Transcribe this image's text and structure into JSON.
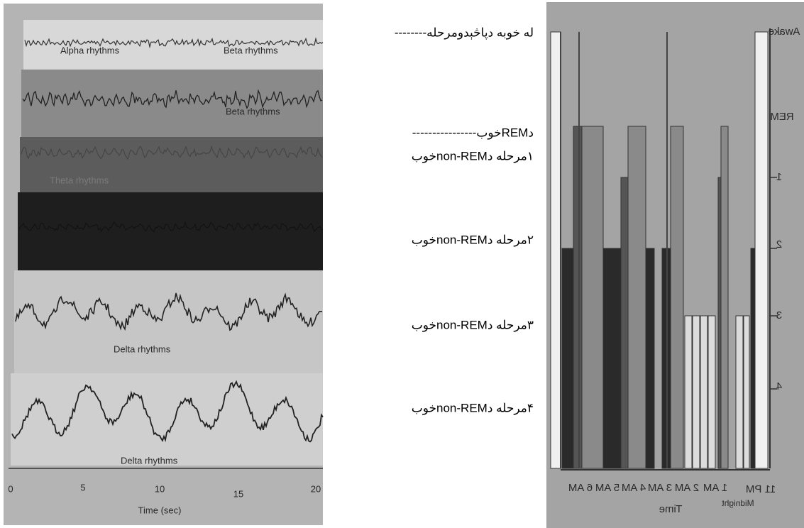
{
  "eeg_panel": {
    "trace_labels": [
      "Alpha rhythms",
      "Beta rhythms",
      "Beta rhythms",
      "Theta rhythms",
      "Delta rhythms",
      "Delta rhythms"
    ],
    "axis_ticks": [
      "0",
      "5",
      "10",
      "15",
      "20"
    ],
    "axis_label": "Time (sec)"
  },
  "stage_labels": [
    "له خوبه دپاڅېدومرحله--------",
    "دREMخوب----------------",
    "۱مرحله دnon-REMخوب",
    "۲مرحله دnon-REMخوب",
    "۳مرحله دnon-REMخوب",
    "۴مرحله دnon-REMخوب"
  ],
  "hypnogram": {
    "stages": [
      "Awake",
      "REM",
      "1",
      "2",
      "3",
      "4"
    ],
    "times": [
      "11 PM",
      "Midnight",
      "1 AM",
      "2 AM",
      "3 AM",
      "4 AM",
      "5 AM",
      "6 AM"
    ],
    "axis_label": "Time"
  }
}
